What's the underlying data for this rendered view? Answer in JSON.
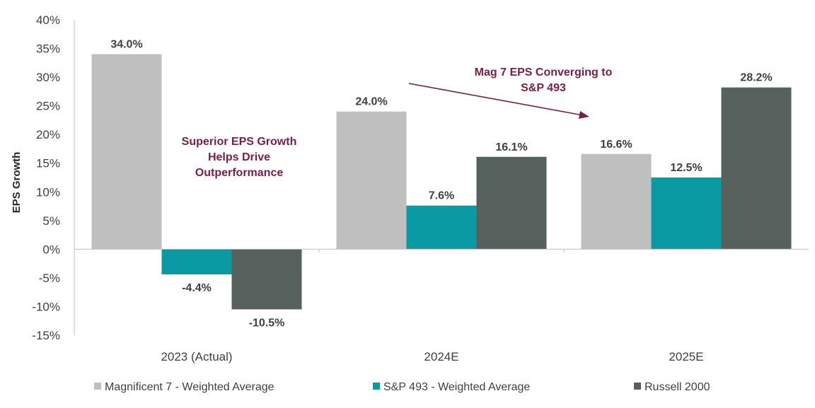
{
  "chart_data": {
    "type": "bar",
    "title": "",
    "xlabel": "",
    "ylabel": "EPS Growth",
    "ylim": [
      -15,
      40
    ],
    "ytick_step": 5,
    "ytick_labels": [
      "40%",
      "35%",
      "30%",
      "25%",
      "20%",
      "15%",
      "10%",
      "5%",
      "0%",
      "-5%",
      "-10%",
      "-15%"
    ],
    "categories": [
      "2023 (Actual)",
      "2024E",
      "2025E"
    ],
    "series": [
      {
        "name": "Magnificent 7 - Weighted Average",
        "color": "#bfbfbf",
        "values": [
          34.0,
          24.0,
          16.6
        ],
        "labels": [
          "34.0%",
          "24.0%",
          "16.6%"
        ]
      },
      {
        "name": "S&P 493 - Weighted Average",
        "color": "#0a9aa3",
        "values": [
          -4.4,
          7.6,
          12.5
        ],
        "labels": [
          "-4.4%",
          "7.6%",
          "12.5%"
        ]
      },
      {
        "name": "Russell 2000",
        "color": "#56605d",
        "values": [
          -10.5,
          16.1,
          28.2
        ],
        "labels": [
          "-10.5%",
          "16.1%",
          "28.2%"
        ]
      }
    ],
    "annotations": [
      {
        "id": "superior",
        "lines": [
          "Superior EPS Growth",
          "Helps Drive",
          "Outperformance"
        ]
      },
      {
        "id": "converging",
        "lines": [
          "Mag 7 EPS Converging to",
          "S&P 493"
        ]
      }
    ],
    "annotation_color": "#7b1e45",
    "legend_position": "bottom"
  }
}
